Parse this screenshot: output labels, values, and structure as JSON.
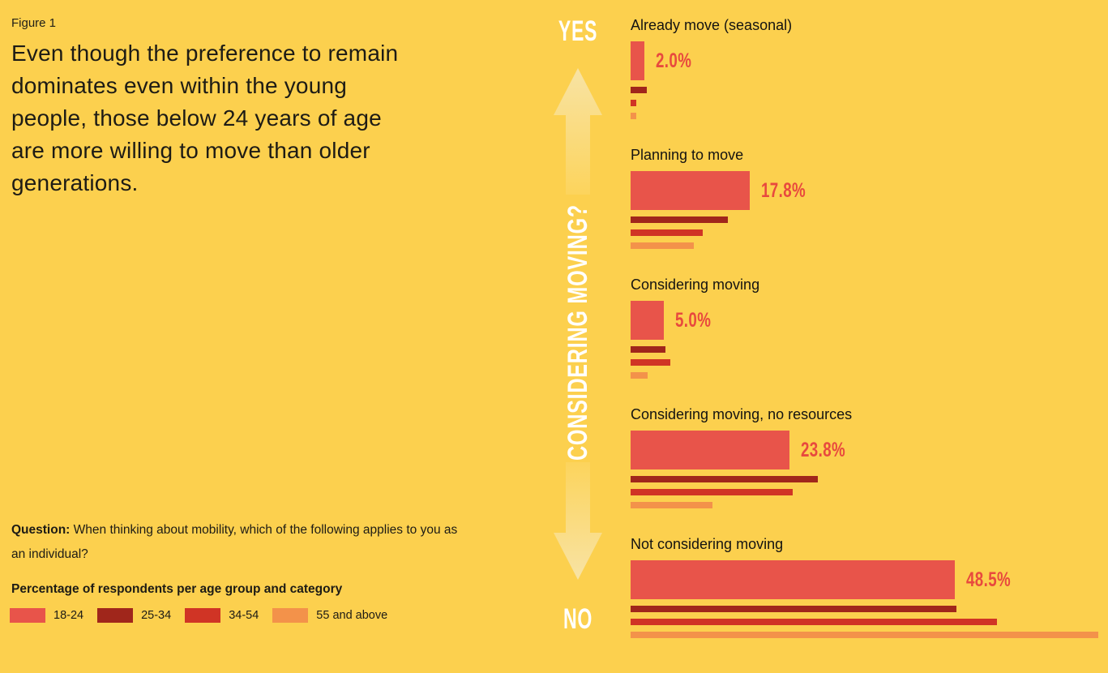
{
  "figure": {
    "label": "Figure 1",
    "headline": "Even though the preference to remain\ndominates even within the young\npeople, those below 24 years of age\nare more willing to move than older\ngenerations.",
    "question_label": "Question:",
    "question_text": " When thinking about mobility, which of the following applies to you as an individual?"
  },
  "legend": {
    "title": "Percentage of respondents per age group and category",
    "items": [
      {
        "label": "18-24",
        "color": "#E8544A"
      },
      {
        "label": "25-34",
        "color": "#A0261B"
      },
      {
        "label": "34-54",
        "color": "#D03425"
      },
      {
        "label": "55 and above",
        "color": "#F3924A"
      }
    ]
  },
  "axis": {
    "yes_label": "YES",
    "question": "CONSIDERING MOVING?",
    "no_label": "NO"
  },
  "chart_data": {
    "type": "bar",
    "orientation": "horizontal",
    "unit": "%",
    "categories": [
      "Already move (seasonal)",
      "Planning to move",
      "Considering moving",
      "Considering moving, no resources",
      "Not considering moving"
    ],
    "series": [
      {
        "name": "18-24",
        "color": "#E8544A",
        "values": [
          2.0,
          17.8,
          5.0,
          23.8,
          48.5
        ]
      },
      {
        "name": "25-34",
        "color": "#A0261B",
        "values": [
          2.4,
          14.5,
          5.2,
          28.0,
          48.7
        ]
      },
      {
        "name": "34-54",
        "color": "#D03425",
        "values": [
          0.9,
          10.8,
          5.9,
          24.2,
          54.8
        ]
      },
      {
        "name": "55 and above",
        "color": "#F3924A",
        "values": [
          0.8,
          9.5,
          2.6,
          12.2,
          69.9
        ]
      }
    ],
    "value_labels": [
      "2.0%",
      "17.8%",
      "5.0%",
      "23.8%",
      "48.5%"
    ],
    "value_labels_series": "18-24",
    "xlim": [
      0,
      71
    ],
    "grid": false,
    "legend_position": "bottom-left"
  },
  "colors": {
    "background": "#FCD04E",
    "text": "#1D1B15",
    "value_label": "#E8493E",
    "axis_text": "#FFFFFF",
    "arrow_light": "#F8E3A4",
    "arrow_fade": "#FCD45C"
  }
}
